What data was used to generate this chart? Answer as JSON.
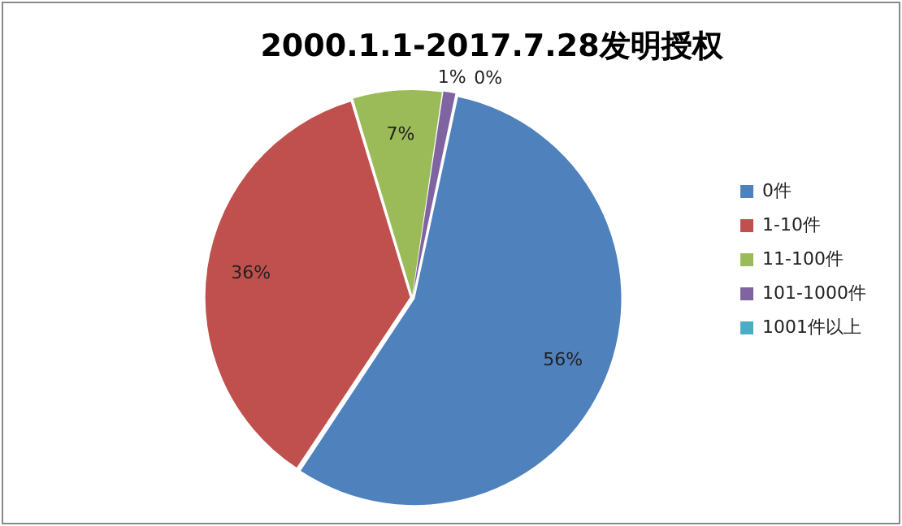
{
  "chart_data": {
    "type": "pie",
    "title": "2000.1.1-2017.7.28发明授权",
    "categories": [
      "0件",
      "1-10件",
      "11-100件",
      "101-1000件",
      "1001件以上"
    ],
    "values": [
      56,
      36,
      7,
      1,
      0
    ],
    "colors": [
      "#4f81bd",
      "#c0504d",
      "#9bbb59",
      "#8064a2",
      "#4bacc6"
    ],
    "value_labels": [
      "56%",
      "36%",
      "7%",
      "1%",
      "0%"
    ],
    "legend": "right"
  }
}
